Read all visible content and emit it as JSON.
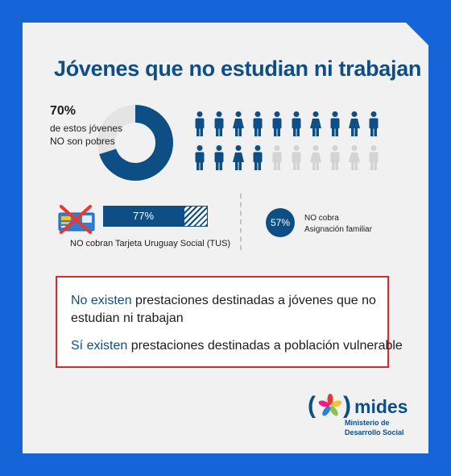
{
  "title": "Jóvenes que no estudian ni trabajan",
  "stat": {
    "percent": "70%",
    "line1": "de estos jóvenes",
    "line2": "NO son pobres",
    "value": 70
  },
  "people": {
    "total": 20,
    "highlighted": 14,
    "colors": {
      "active": "#0d4f84",
      "inactive": "#d4d4d4"
    },
    "icons": [
      "man-icon",
      "man-icon",
      "woman-icon",
      "man-icon",
      "man-icon",
      "man-icon",
      "woman-icon",
      "man-icon",
      "woman-icon",
      "man-icon",
      "man-icon",
      "man-icon",
      "woman-icon",
      "man-icon",
      "man-icon",
      "man-icon",
      "woman-icon",
      "man-icon",
      "woman-icon",
      "man-icon"
    ]
  },
  "tus": {
    "percent_label": "77%",
    "value": 77,
    "label": "NO cobran Tarjeta Uruguay Social (TUS)",
    "card_icon": "tus-card-icon-crossed"
  },
  "asignacion": {
    "percent_label": "57%",
    "line1": "NO cobra",
    "line2": "Asignación familiar"
  },
  "box": {
    "line1": {
      "highlight": "No existen",
      "rest": " prestaciones destinadas a jóvenes que no"
    },
    "line2": "estudian ni trabajan",
    "line3": {
      "highlight": "Sí existen",
      "rest": " prestaciones destinadas a población vulnerable"
    },
    "border_color": "#d62b2b"
  },
  "logo": {
    "word": "mides",
    "line1": "Ministerio de",
    "line2": "Desarrollo Social"
  },
  "colors": {
    "background": "#1565d8",
    "card": "#f1f1f1",
    "primary": "#0d4f84",
    "donut_rest": "#e4e4e4"
  }
}
